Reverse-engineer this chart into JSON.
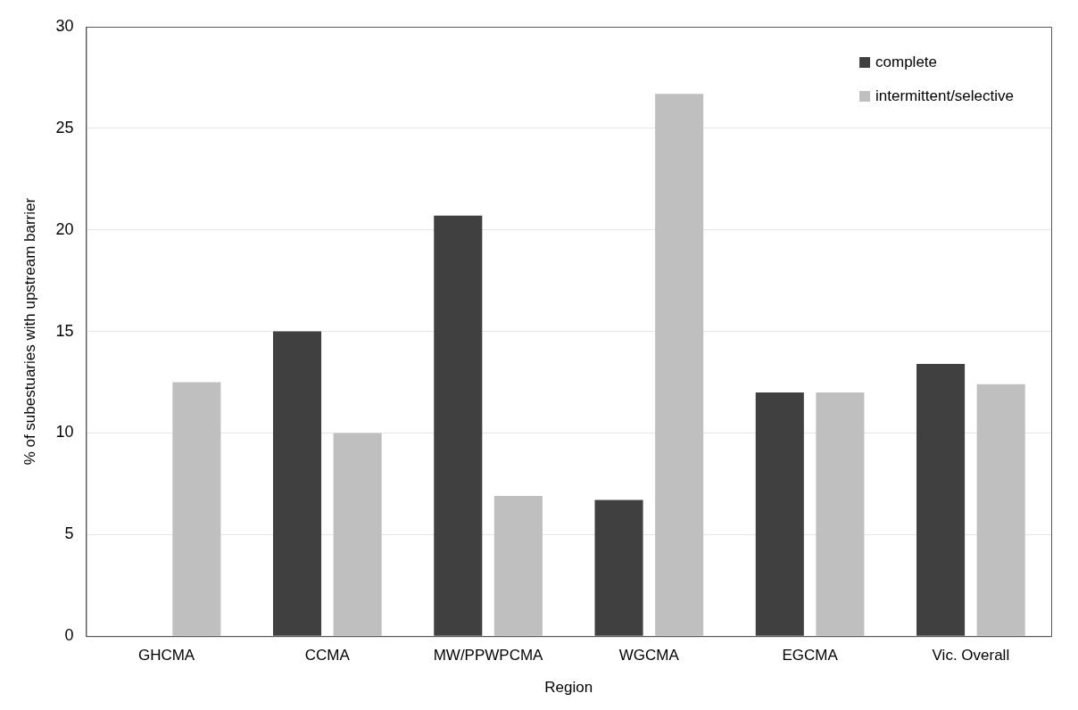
{
  "chart_data": {
    "type": "bar",
    "xlabel": "Region",
    "ylabel": "% of subestuaries with upstream barrier",
    "categories": [
      "GHCMA",
      "CCMA",
      "MW/PPWPCMA",
      "WGCMA",
      "EGCMA",
      "Vic. Overall"
    ],
    "series": [
      {
        "name": "complete",
        "color": "#404040",
        "values": [
          0,
          15,
          20.7,
          6.7,
          12,
          13.4
        ]
      },
      {
        "name": "intermittent/selective",
        "color": "#bfbfbf",
        "values": [
          12.5,
          10,
          6.9,
          26.7,
          12,
          12.4
        ]
      }
    ],
    "ylim": [
      0,
      30
    ],
    "yticks": [
      0,
      5,
      10,
      15,
      20,
      25,
      30
    ],
    "grid": "y",
    "legend": "top right"
  }
}
